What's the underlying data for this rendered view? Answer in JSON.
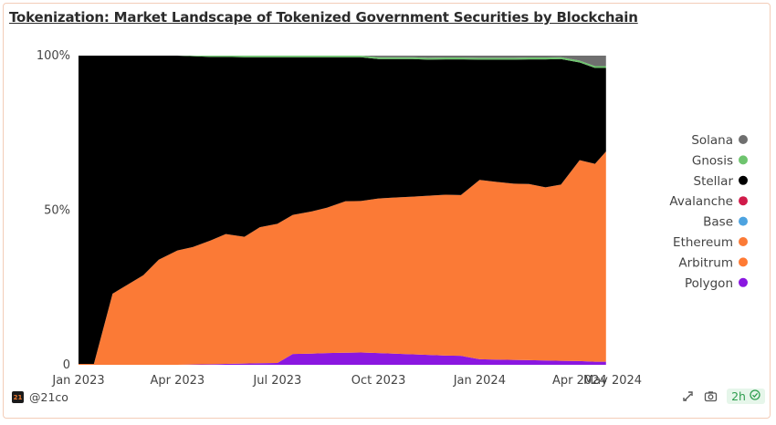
{
  "title": "Tokenization: Market Landscape of Tokenized Government Securities by Blockchain",
  "footer": {
    "handle": "@21co",
    "logo_text": "21",
    "age": "2h"
  },
  "chart_data": {
    "type": "area",
    "stacked": true,
    "normalized": true,
    "x": [
      "2023-01-01",
      "2023-01-15",
      "2023-02-01",
      "2023-02-15",
      "2023-03-01",
      "2023-03-15",
      "2023-04-01",
      "2023-04-15",
      "2023-05-01",
      "2023-05-15",
      "2023-06-01",
      "2023-06-15",
      "2023-07-01",
      "2023-07-15",
      "2023-08-01",
      "2023-08-15",
      "2023-09-01",
      "2023-09-15",
      "2023-10-01",
      "2023-10-15",
      "2023-11-01",
      "2023-11-15",
      "2023-12-01",
      "2023-12-15",
      "2024-01-01",
      "2024-01-15",
      "2024-02-01",
      "2024-02-15",
      "2024-03-01",
      "2024-03-15",
      "2024-04-01",
      "2024-04-15",
      "2024-04-25"
    ],
    "series": [
      {
        "name": "Polygon",
        "color": "#8a17e0",
        "values": [
          0,
          0,
          0,
          0,
          0,
          0,
          0,
          0.1,
          0.2,
          0.3,
          0.4,
          0.5,
          0.6,
          3.5,
          3.6,
          3.8,
          3.9,
          4.0,
          3.8,
          3.6,
          3.4,
          3.2,
          3.0,
          2.9,
          1.8,
          1.7,
          1.6,
          1.5,
          1.4,
          1.3,
          1.2,
          1.0,
          1.0
        ]
      },
      {
        "name": "Arbitrum",
        "color": "#ff7a33",
        "values": [
          0,
          0,
          0,
          0,
          0,
          0,
          0,
          0,
          0,
          0,
          0,
          0,
          0,
          0,
          0,
          0,
          0,
          0,
          0,
          0,
          0,
          0,
          0,
          0,
          0,
          0,
          0,
          0,
          0,
          0,
          0,
          0,
          0
        ]
      },
      {
        "name": "Ethereum",
        "color": "#fb7a36",
        "values": [
          0.3,
          0.3,
          23,
          26,
          29,
          34,
          37,
          38,
          40,
          42,
          41,
          44,
          45,
          45,
          46,
          47,
          49,
          49,
          50,
          50.5,
          51,
          51.5,
          52,
          52,
          58,
          57.5,
          57,
          57,
          56,
          57,
          65,
          64,
          68
        ]
      },
      {
        "name": "Base",
        "color": "#4da3e0",
        "values": [
          0,
          0,
          0,
          0,
          0,
          0,
          0,
          0,
          0,
          0,
          0,
          0,
          0,
          0,
          0,
          0,
          0,
          0,
          0,
          0,
          0,
          0,
          0,
          0,
          0,
          0,
          0,
          0,
          0,
          0,
          0,
          0,
          0
        ]
      },
      {
        "name": "Avalanche",
        "color": "#d01b4a",
        "values": [
          0,
          0,
          0,
          0,
          0,
          0,
          0,
          0,
          0,
          0,
          0,
          0,
          0,
          0,
          0,
          0,
          0,
          0,
          0,
          0,
          0,
          0,
          0,
          0,
          0,
          0,
          0,
          0,
          0,
          0,
          0,
          0,
          0
        ]
      },
      {
        "name": "Stellar",
        "color": "#000000",
        "values": [
          99.7,
          99.7,
          77,
          74,
          71,
          66,
          63,
          61.7,
          59.4,
          57.3,
          58.1,
          55,
          53.9,
          51,
          49.9,
          48.7,
          46.6,
          46.5,
          45.1,
          44.8,
          44.5,
          44,
          43.8,
          43.9,
          38.9,
          39.5,
          40.1,
          40.3,
          41.4,
          40.6,
          31.6,
          31,
          27
        ]
      },
      {
        "name": "Gnosis",
        "color": "#6ec46e",
        "values": [
          0,
          0,
          0,
          0,
          0,
          0,
          0,
          0.2,
          0.4,
          0.4,
          0.5,
          0.5,
          0.5,
          0.5,
          0.5,
          0.5,
          0.5,
          0.5,
          0.6,
          0.6,
          0.6,
          0.6,
          0.6,
          0.6,
          0.6,
          0.6,
          0.6,
          0.6,
          0.6,
          0.6,
          0.6,
          0.6,
          0.6
        ]
      },
      {
        "name": "Solana",
        "color": "#6f6f6f",
        "values": [
          0,
          0,
          0,
          0,
          0,
          0,
          0,
          0,
          0,
          0,
          0,
          0,
          0,
          0,
          0,
          0,
          0,
          0,
          0.5,
          0.5,
          0.5,
          0.7,
          0.6,
          0.6,
          0.7,
          0.7,
          0.7,
          0.6,
          0.6,
          0.5,
          1.6,
          3.4,
          3.4
        ]
      }
    ],
    "legend_order": [
      "Solana",
      "Gnosis",
      "Stellar",
      "Avalanche",
      "Base",
      "Ethereum",
      "Arbitrum",
      "Polygon"
    ],
    "legend_position": "right",
    "y_ticks": [
      "0",
      "50%",
      "100%"
    ],
    "x_ticks": [
      {
        "label": "Jan 2023",
        "date": "2023-01-01"
      },
      {
        "label": "Apr 2023",
        "date": "2023-04-01"
      },
      {
        "label": "Jul 2023",
        "date": "2023-07-01"
      },
      {
        "label": "Oct 2023",
        "date": "2023-10-01"
      },
      {
        "label": "Jan 2024",
        "date": "2024-01-01"
      },
      {
        "label": "Apr 2024",
        "date": "2024-04-01"
      },
      {
        "label": "May 2024",
        "date": "2024-05-01"
      }
    ],
    "ylim": [
      0,
      100
    ],
    "xlim": [
      "2023-01-01",
      "2024-05-01"
    ],
    "grid": false
  }
}
